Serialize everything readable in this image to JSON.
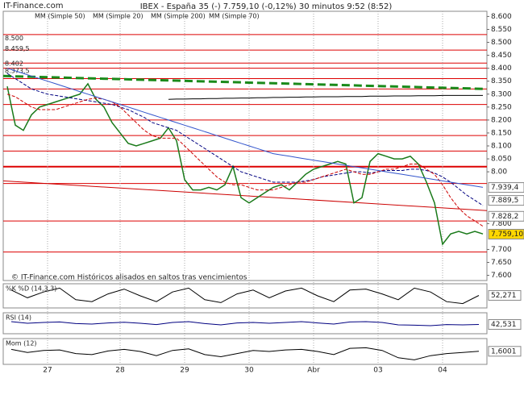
{
  "chart_data": {
    "type": "line",
    "site": "IT-Finance.com",
    "title": "IBEX - España 35 (-)   7.759,10 (-0,12%)   30 minutos  9:52 (8:52)",
    "footer": "© IT-Finance.com  Históricos alisados en saltos tras vencimientos",
    "categories": [
      null,
      null,
      null,
      null,
      null,
      "27",
      null,
      null,
      null,
      null,
      null,
      null,
      null,
      null,
      "28",
      null,
      null,
      null,
      null,
      null,
      null,
      null,
      "29",
      null,
      null,
      null,
      null,
      null,
      null,
      null,
      "30",
      null,
      null,
      null,
      null,
      null,
      null,
      null,
      "Abr",
      null,
      null,
      null,
      null,
      null,
      null,
      null,
      "03",
      null,
      null,
      null,
      null,
      null,
      null,
      null,
      "04",
      null,
      null,
      null,
      null,
      null
    ],
    "ylim": [
      7580,
      8620
    ],
    "yticks": [
      {
        "value": 8600,
        "label": "8.600"
      },
      {
        "value": 8550,
        "label": "8.550"
      },
      {
        "value": 8500,
        "label": "8.500"
      },
      {
        "value": 8450,
        "label": "8.450"
      },
      {
        "value": 8400,
        "label": "8.400"
      },
      {
        "value": 8350,
        "label": "8.350"
      },
      {
        "value": 8300,
        "label": "8.300"
      },
      {
        "value": 8250,
        "label": "8.250"
      },
      {
        "value": 8200,
        "label": "8.200"
      },
      {
        "value": 8150,
        "label": "8.150"
      },
      {
        "value": 8100,
        "label": "8.100"
      },
      {
        "value": 8050,
        "label": "8.050"
      },
      {
        "value": 8000,
        "label": "8.00"
      },
      {
        "value": 7800,
        "label": "7.800"
      },
      {
        "value": 7700,
        "label": "7.700"
      },
      {
        "value": 7650,
        "label": "7.650"
      },
      {
        "value": 7600,
        "label": "7.600"
      }
    ],
    "series": [
      {
        "color": "#1a7a1a",
        "values": [
          8330,
          8180,
          8160,
          8220,
          8250,
          8260,
          8270,
          8280,
          8290,
          8300,
          8340,
          8280,
          8250,
          8190,
          8150,
          8110,
          8100,
          8110,
          8120,
          8130,
          8170,
          8120,
          7970,
          7930,
          7930,
          7940,
          7930,
          7950,
          8020,
          7900,
          7880,
          7900,
          7920,
          7940,
          7950,
          7930,
          7960,
          7990,
          8010,
          8020,
          8030,
          8040,
          8030,
          7880,
          7900,
          8040,
          8070,
          8060,
          8050,
          8050,
          8060,
          8030,
          7960,
          7880,
          7720,
          7760,
          7770,
          7760,
          7770,
          7760
        ]
      },
      {
        "name": "MM (Simple 50)",
        "color": "#000080",
        "values": [
          8380,
          8360,
          8340,
          8320,
          8310,
          8300,
          8295,
          8290,
          8285,
          8280,
          8275,
          8270,
          8265,
          8260,
          8250,
          8240,
          8225,
          8210,
          8190,
          8180,
          8170,
          8160,
          8140,
          8120,
          8100,
          8080,
          8060,
          8040,
          8020,
          8000,
          7990,
          7980,
          7970,
          7960,
          7960,
          7960,
          7960,
          7965,
          7970,
          7980,
          7985,
          7990,
          7995,
          8000,
          8000,
          7995,
          8000,
          8005,
          8005,
          8005,
          8010,
          8010,
          8005,
          7995,
          7980,
          7960,
          7935,
          7910,
          7890,
          7870
        ]
      },
      {
        "name": "MM (Simple 20)",
        "color": "#cc0000",
        "values": [
          8300,
          8290,
          8270,
          8250,
          8240,
          8240,
          8240,
          8250,
          8260,
          8270,
          8280,
          8285,
          8280,
          8270,
          8250,
          8220,
          8190,
          8160,
          8140,
          8130,
          8130,
          8130,
          8100,
          8070,
          8040,
          8010,
          7980,
          7960,
          7950,
          7950,
          7940,
          7930,
          7930,
          7930,
          7940,
          7950,
          7960,
          7960,
          7970,
          7980,
          7990,
          8000,
          8010,
          8000,
          7990,
          7990,
          8000,
          8010,
          8010,
          8020,
          8030,
          8030,
          8010,
          7990,
          7950,
          7900,
          7860,
          7830,
          7810,
          7790
        ]
      },
      {
        "name": "MM (Simple 200)",
        "color": "#000000",
        "values": [
          null,
          null,
          null,
          null,
          null,
          null,
          null,
          null,
          null,
          null,
          null,
          null,
          null,
          null,
          null,
          null,
          null,
          null,
          null,
          null,
          8280,
          8281,
          8281,
          8282,
          8282,
          8283,
          8283,
          8284,
          8284,
          8285,
          8285,
          8286,
          8286,
          8287,
          8287,
          8288,
          8288,
          8289,
          8289,
          8290,
          8290,
          8290,
          8291,
          8291,
          8291,
          8292,
          8292,
          8292,
          8293,
          8293,
          8293,
          8294,
          8294,
          8294,
          8295,
          8295,
          8295,
          8295,
          8295,
          8295
        ]
      },
      {
        "name": "MM (Simple 70)",
        "color": "#3355cc",
        "values": [
          8400,
          8390,
          8380,
          8370,
          8360,
          8350,
          8340,
          8330,
          8320,
          8310,
          8300,
          8290,
          8280,
          8270,
          8260,
          8250,
          8240,
          8230,
          8220,
          8210,
          8200,
          8190,
          8180,
          8170,
          8160,
          8150,
          8140,
          8130,
          8120,
          8110,
          8100,
          8090,
          8080,
          8070,
          8065,
          8060,
          8055,
          8050,
          8045,
          8040,
          8035,
          8030,
          8025,
          8020,
          8015,
          8010,
          8005,
          8000,
          7995,
          7990,
          7985,
          7980,
          7975,
          7970,
          7965,
          7960,
          7955,
          7950,
          7945,
          7940
        ]
      }
    ],
    "levels": [
      8530,
      8470,
      8420,
      8400,
      8360,
      8320,
      8260,
      8200,
      8140,
      8080,
      8020,
      7955,
      7810,
      7690
    ],
    "level_labels": [
      {
        "value": 8500,
        "label": "8.500"
      },
      {
        "value": 8459.5,
        "label": "8.459,5"
      },
      {
        "value": 8402,
        "label": "8.402"
      },
      {
        "value": 8373.5,
        "label": "8.373,5"
      }
    ],
    "trendline": {
      "color": "#cc0000",
      "values": [
        7965,
        7850
      ]
    },
    "dashed_line": {
      "color": "#1a8a1a",
      "values": [
        8370,
        8320
      ]
    },
    "price_labels": [
      {
        "value": 7939.4,
        "label": "7.939,4"
      },
      {
        "value": 7889.5,
        "label": "7.889,5"
      },
      {
        "value": 7828.2,
        "label": "7.828,2"
      },
      {
        "value": 7759.1,
        "label": "7.759,10"
      }
    ],
    "indicators": [
      {
        "title": "%K %D (14,3,3)",
        "ylim": [
          0,
          100
        ],
        "color": "#000000",
        "values": [
          80,
          40,
          70,
          90,
          30,
          20,
          60,
          85,
          50,
          20,
          70,
          90,
          30,
          15,
          60,
          80,
          40,
          75,
          90,
          50,
          20,
          80,
          85,
          60,
          30,
          90,
          70,
          20,
          10,
          52.271
        ],
        "value_label": "52,271"
      },
      {
        "title": "RSI (14)",
        "ylim": [
          0,
          100
        ],
        "color": "#000080",
        "values": [
          60,
          50,
          55,
          58,
          48,
          45,
          52,
          56,
          50,
          42,
          55,
          60,
          48,
          40,
          52,
          55,
          50,
          55,
          60,
          52,
          45,
          58,
          60,
          55,
          40,
          38,
          35,
          42,
          40,
          42.531
        ],
        "value_label": "42,531"
      },
      {
        "title": "Mom (12)",
        "ylim": [
          -100,
          100
        ],
        "color": "#000000",
        "values": [
          20,
          -10,
          10,
          15,
          -20,
          -30,
          5,
          20,
          0,
          -40,
          10,
          25,
          -30,
          -50,
          -20,
          10,
          0,
          15,
          20,
          0,
          -30,
          30,
          35,
          10,
          -60,
          -80,
          -40,
          -20,
          -10,
          1.6001
        ],
        "value_label": "1,6001"
      }
    ]
  }
}
